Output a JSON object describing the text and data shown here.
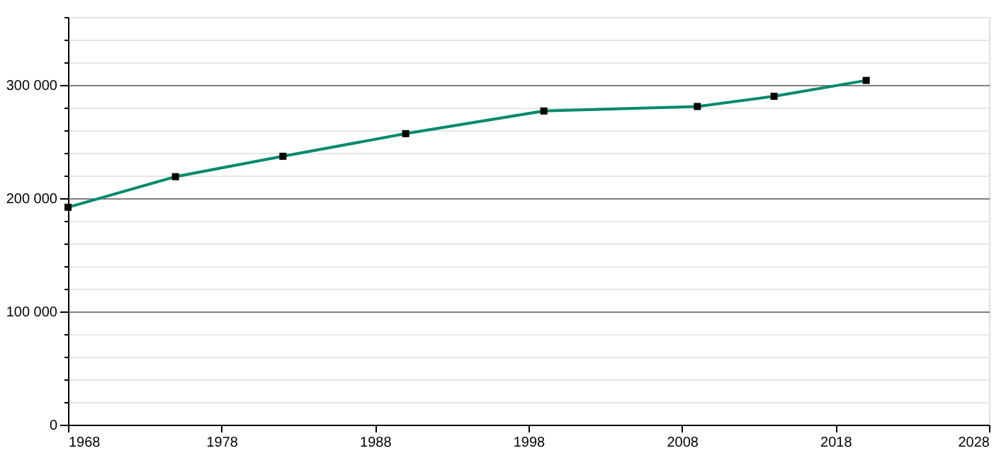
{
  "chart_data": {
    "type": "line",
    "x": [
      1968,
      1975,
      1982,
      1990,
      1999,
      2009,
      2014,
      2020
    ],
    "series": [
      {
        "color": "#008a6b",
        "values": [
          192000,
          219000,
          237000,
          257000,
          277000,
          281000,
          290000,
          304000
        ]
      }
    ],
    "xlim": [
      1968,
      2028
    ],
    "xticks": [
      1968,
      1978,
      1988,
      1998,
      2008,
      2018,
      2028
    ],
    "ylim": [
      0,
      360000
    ],
    "yticks": [
      0,
      {
        "value": 20000,
        "label": null
      },
      {
        "value": 40000,
        "label": null
      },
      {
        "value": 60000,
        "label": null
      },
      {
        "value": 80000,
        "label": null
      },
      {
        "value": 100000,
        "label": "100 000"
      },
      {
        "value": 120000,
        "label": null
      },
      {
        "value": 140000,
        "label": null
      },
      {
        "value": 160000,
        "label": null
      },
      {
        "value": 180000,
        "label": null
      },
      {
        "value": 200000,
        "label": "200 000"
      },
      {
        "value": 220000,
        "label": null
      },
      {
        "value": 240000,
        "label": null
      },
      {
        "value": 260000,
        "label": null
      },
      {
        "value": 280000,
        "label": null
      },
      {
        "value": 300000,
        "label": "300 000"
      },
      {
        "value": 320000,
        "label": null
      },
      {
        "value": 340000,
        "label": null
      },
      {
        "value": 360000,
        "label": null
      }
    ],
    "grid": "y",
    "marker": "square",
    "line_style": "solid"
  }
}
